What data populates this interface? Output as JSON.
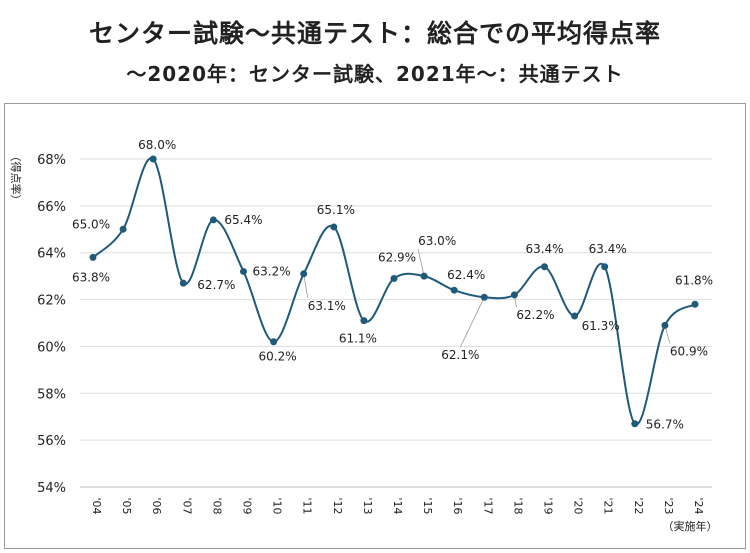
{
  "title": "センター試験〜共通テスト：総合での平均得点率",
  "subtitle": "〜2020年：センター試験、2021年〜：共通テスト",
  "chart_data": {
    "type": "line",
    "title": "センター試験〜共通テスト：総合での平均得点率",
    "subtitle": "〜2020年：センター試験、2021年〜：共通テスト",
    "ylabel": "（得点率）",
    "xlabel": "（実施年）",
    "ylim": [
      54,
      68
    ],
    "yticks": [
      "54%",
      "56%",
      "58%",
      "60%",
      "62%",
      "64%",
      "66%",
      "68%"
    ],
    "categories": [
      "'04",
      "'05",
      "'06",
      "'07",
      "'08",
      "'09",
      "'10",
      "'11",
      "'12",
      "'13",
      "'14",
      "'15",
      "'16",
      "'17",
      "'18",
      "'19",
      "'20",
      "'21",
      "'22",
      "'23",
      "'24"
    ],
    "values": [
      63.8,
      65.0,
      68.0,
      62.7,
      65.4,
      63.2,
      60.2,
      63.1,
      65.1,
      61.1,
      62.9,
      63.0,
      62.4,
      62.1,
      62.2,
      63.4,
      61.3,
      63.4,
      56.7,
      60.9,
      61.8
    ],
    "data_labels": [
      "63.8%",
      "65.0%",
      "68.0%",
      "62.7%",
      "65.4%",
      "63.2%",
      "60.2%",
      "63.1%",
      "65.1%",
      "61.1%",
      "62.9%",
      "63.0%",
      "62.4%",
      "62.1%",
      "62.2%",
      "63.4%",
      "61.3%",
      "63.4%",
      "56.7%",
      "60.9%",
      "61.8%"
    ],
    "grid": true,
    "line_color": "#1f5a7a"
  }
}
